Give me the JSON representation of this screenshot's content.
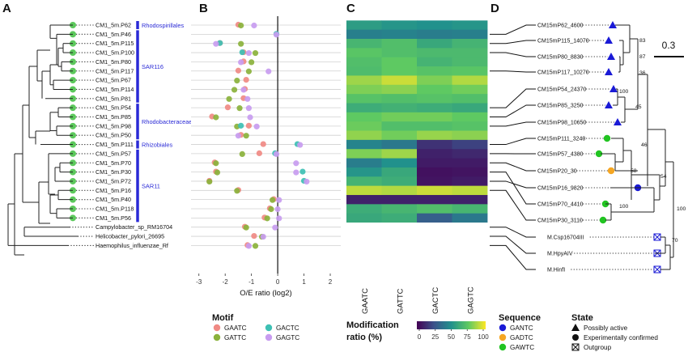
{
  "panels": {
    "a": "A",
    "b": "B",
    "c": "C",
    "d": "D"
  },
  "tree_a": {
    "leaves": [
      "CM1_5m.P62",
      "CM1_5m.P46",
      "CM1_5m.P115",
      "CM1_5m.P100",
      "CM1_5m.P80",
      "CM1_5m.P117",
      "CM1_5m.P67",
      "CM1_5m.P114",
      "CM1_5m.P81",
      "CM1_5m.P54",
      "CM1_5m.P85",
      "CM1_5m.P98",
      "CM1_5m.P50",
      "CM1_5m.P111",
      "CM1_5m.P57",
      "CM1_5m.P70",
      "CM1_5m.P30",
      "CM1_5m.P72",
      "CM1_5m.P16",
      "CM1_5m.P40",
      "CM1_5m.P118",
      "CM1_5m.P56",
      "Campylobacter_sp_RM16704",
      "Helicobacter_pylori_26695",
      "Haemophilus_influenzae_Rf"
    ],
    "clades": [
      "Rhodospirillales",
      "SAR116",
      "Rhodobacteraceae",
      "Rhizobiales",
      "SAR11"
    ],
    "dot_color": "#5cc85c",
    "clade_color": "#2a2ad6"
  },
  "chart_b": {
    "xlabel": "O/E ratio (log2)",
    "x_ticks": [
      "-3",
      "-2",
      "-1",
      "0",
      "1",
      "2"
    ],
    "xlim": [
      -3.3,
      2.4
    ],
    "colors": {
      "GAATC": "#f08a84",
      "GATTC": "#8bb23c",
      "GACTC": "#3ec0b4",
      "GAGTC": "#c89cf0"
    },
    "rows": [
      {
        "GAATC": -1.5,
        "GATTC": -1.4,
        "GACTC": null,
        "GAGTC": -0.9
      },
      {
        "GAATC": null,
        "GATTC": null,
        "GACTC": -0.05,
        "GAGTC": -0.05
      },
      {
        "GAATC": -2.2,
        "GATTC": -1.4,
        "GACTC": -2.2,
        "GAGTC": -2.35
      },
      {
        "GAATC": -1.3,
        "GATTC": -0.85,
        "GACTC": -1.35,
        "GAGTC": -1.1
      },
      {
        "GAATC": -1.3,
        "GATTC": -1.0,
        "GACTC": null,
        "GAGTC": -1.4
      },
      {
        "GAATC": -1.5,
        "GATTC": -1.1,
        "GACTC": null,
        "GAGTC": -0.35
      },
      {
        "GAATC": -1.2,
        "GATTC": -1.55,
        "GACTC": null,
        "GAGTC": null
      },
      {
        "GAATC": -1.25,
        "GATTC": -1.65,
        "GACTC": null,
        "GAGTC": -1.3
      },
      {
        "GAATC": -1.3,
        "GATTC": -1.85,
        "GACTC": null,
        "GAGTC": -1.15
      },
      {
        "GAATC": -1.9,
        "GATTC": -1.45,
        "GACTC": null,
        "GAGTC": -1.1
      },
      {
        "GAATC": -2.5,
        "GATTC": -2.35,
        "GACTC": null,
        "GAGTC": -1.05
      },
      {
        "GAATC": -1.1,
        "GATTC": -1.55,
        "GACTC": -1.4,
        "GAGTC": -0.8
      },
      {
        "GAATC": -1.4,
        "GATTC": -1.2,
        "GACTC": null,
        "GAGTC": -1.5
      },
      {
        "GAATC": -0.55,
        "GATTC": null,
        "GACTC": 0.75,
        "GAGTC": 0.85
      },
      {
        "GAATC": -0.7,
        "GATTC": -1.35,
        "GACTC": -0.1,
        "GAGTC": -0.05
      },
      {
        "GAATC": -2.4,
        "GATTC": -2.35,
        "GACTC": null,
        "GAGTC": 0.7
      },
      {
        "GAATC": -2.35,
        "GATTC": -2.3,
        "GACTC": 0.95,
        "GAGTC": 0.7
      },
      {
        "GAATC": -2.6,
        "GATTC": -2.6,
        "GACTC": 1.0,
        "GAGTC": 1.1
      },
      {
        "GAATC": -1.5,
        "GATTC": -1.55,
        "GACTC": null,
        "GAGTC": null
      },
      {
        "GAATC": -0.15,
        "GATTC": -0.2,
        "GACTC": null,
        "GAGTC": 0.05
      },
      {
        "GAATC": -0.3,
        "GATTC": -0.25,
        "GACTC": null,
        "GAGTC": 0.0
      },
      {
        "GAATC": -0.5,
        "GATTC": -0.4,
        "GACTC": null,
        "GAGTC": 0.05
      },
      {
        "GAATC": -1.25,
        "GATTC": -1.2,
        "GACTC": null,
        "GAGTC": -0.1
      },
      {
        "GAATC": -0.9,
        "GATTC": -0.6,
        "GACTC": null,
        "GAGTC": -0.55
      },
      {
        "GAATC": -1.15,
        "GATTC": -0.85,
        "GACTC": null,
        "GAGTC": -1.1
      }
    ]
  },
  "legend_motif": {
    "title": "Motif",
    "items": [
      "GAATC",
      "GACTC",
      "GATTC",
      "GAGTC"
    ]
  },
  "heatmap_c": {
    "columns": [
      "GAATC",
      "GATTC",
      "GACTC",
      "GAGTC"
    ],
    "colorbar_title_1": "Modification",
    "colorbar_title_2": "ratio (%)",
    "colorbar_ticks": [
      "0",
      "25",
      "50",
      "75",
      "100"
    ],
    "rows": [
      [
        55,
        52,
        50,
        52
      ],
      [
        43,
        44,
        42,
        43
      ],
      [
        66,
        70,
        60,
        65
      ],
      [
        73,
        70,
        68,
        68
      ],
      [
        70,
        75,
        65,
        68
      ],
      [
        69,
        75,
        72,
        73
      ],
      [
        85,
        92,
        80,
        88
      ],
      [
        80,
        82,
        75,
        78
      ],
      [
        72,
        70,
        72,
        70
      ],
      [
        62,
        64,
        62,
        60
      ],
      [
        75,
        78,
        78,
        75
      ],
      [
        77,
        70,
        70,
        72
      ],
      [
        83,
        78,
        84,
        82
      ],
      [
        45,
        40,
        15,
        20
      ],
      [
        80,
        85,
        10,
        12
      ],
      [
        42,
        50,
        8,
        8
      ],
      [
        52,
        60,
        5,
        6
      ],
      [
        65,
        62,
        6,
        8
      ],
      [
        90,
        88,
        92,
        90
      ],
      [
        10,
        10,
        10,
        10
      ],
      [
        62,
        66,
        70,
        66
      ],
      [
        60,
        62,
        30,
        40
      ],
      [
        null,
        null,
        null,
        null
      ],
      [
        null,
        null,
        null,
        null
      ],
      [
        null,
        null,
        null,
        null
      ]
    ]
  },
  "tree_d": {
    "leaves": [
      {
        "label": "CM15mP62_4600",
        "shape": "triangle",
        "color": "#1a1ad6"
      },
      {
        "label": "CM15mP115_14070",
        "shape": "triangle",
        "color": "#1a1ad6"
      },
      {
        "label": "CM15mP80_8830",
        "shape": "triangle",
        "color": "#1a1ad6"
      },
      {
        "label": "CM15mP117_10270",
        "shape": "triangle",
        "color": "#1a1ad6"
      },
      {
        "label": "CM15mP54_24370",
        "shape": "triangle",
        "color": "#1a1ad6"
      },
      {
        "label": "CM15mP85_3250",
        "shape": "triangle",
        "color": "#1a1ad6"
      },
      {
        "label": "CM15mP98_10650",
        "shape": "triangle",
        "color": "#1a1ad6"
      },
      {
        "label": "CM15mP111_3240",
        "shape": "circle",
        "color": "#22c422"
      },
      {
        "label": "CM15mP57_4380",
        "shape": "circle",
        "color": "#22c422"
      },
      {
        "label": "CM15mP20_30",
        "shape": "circle",
        "color": "#f5a623"
      },
      {
        "label": "CM15mP16_9820",
        "shape": "circle",
        "color": "#1a1ad6"
      },
      {
        "label": "CM15mP70_4410",
        "shape": "circle",
        "color": "#22c422"
      },
      {
        "label": "CM15mP30_3110",
        "shape": "circle",
        "color": "#22c422"
      },
      {
        "label": "M.Csp16704III",
        "shape": "outgroup",
        "color": "#1a1ad6"
      },
      {
        "label": "M.HpyAIV",
        "shape": "outgroup",
        "color": "#1a1ad6"
      },
      {
        "label": "M.HinfI",
        "shape": "outgroup",
        "color": "#1a1ad6"
      }
    ],
    "bootstrap": [
      "83",
      "87",
      "36",
      "100",
      "45",
      "46",
      "58",
      "54",
      "100",
      "100",
      "70"
    ],
    "scale_label": "0.3"
  },
  "legend_sequence": {
    "title": "Sequence",
    "items": [
      {
        "label": "GANTC",
        "color": "#1a1ad6"
      },
      {
        "label": "GADTC",
        "color": "#f5a623"
      },
      {
        "label": "GAWTC",
        "color": "#22c422"
      }
    ]
  },
  "legend_state": {
    "title": "State",
    "items": [
      "Possibly active",
      "Experimentally confirmed",
      "Outgroup"
    ]
  }
}
